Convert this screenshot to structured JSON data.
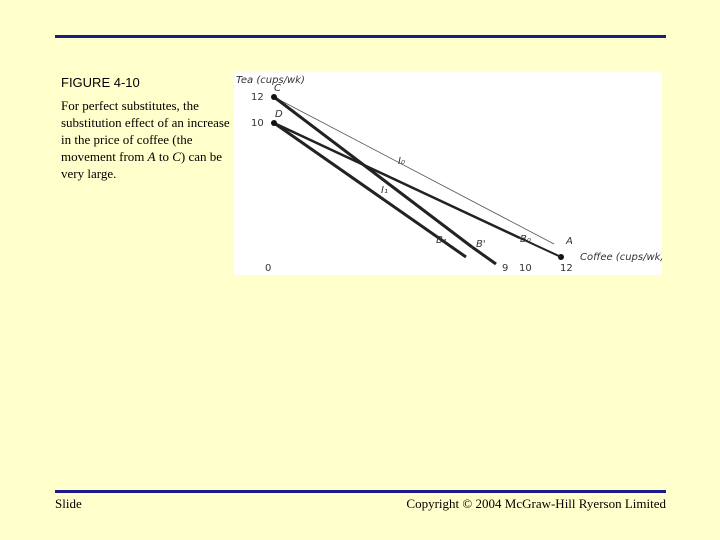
{
  "slide": {
    "figure_title": "FIGURE 4-10",
    "caption_parts": {
      "p1": "For perfect substitutes, the substitution effect of an increase in the price of coffee (the movement from ",
      "a": "A",
      "p2": " to ",
      "c": "C",
      "p3": ") can be very large."
    },
    "footer_left": "Slide",
    "footer_right": "Copyright © 2004 McGraw-Hill Ryerson Limited"
  },
  "graph": {
    "y_axis_label": "Tea (cups/wk)",
    "x_axis_label": "Coffee (cups/wk)",
    "origin_label": "0",
    "y_ticks": [
      "12",
      "10"
    ],
    "x_ticks": [
      "9",
      "10",
      "12"
    ],
    "point_labels": {
      "C": "C",
      "D": "D",
      "A": "A",
      "B": "B'",
      "B1": "B₁",
      "B0": "B₀",
      "I0": "I₀",
      "I1": "I₁"
    }
  }
}
